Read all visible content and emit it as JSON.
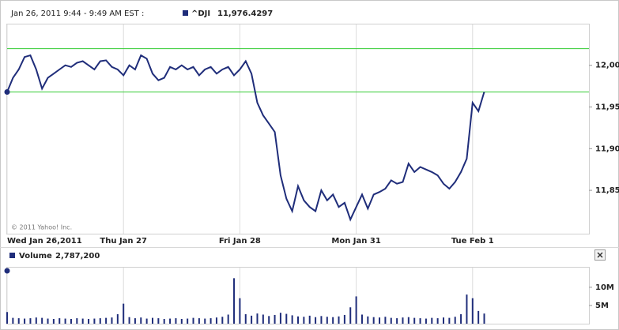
{
  "header": {
    "text": "Jan 26, 2011 9:44 - 9:49 AM EST :"
  },
  "chart_data": [
    {
      "type": "line",
      "series": [
        {
          "name": "^DJI",
          "color": "#1f2d7a",
          "quote": "11,976.4297",
          "values": [
            11968,
            11985,
            11995,
            12010,
            12012,
            11995,
            11972,
            11985,
            11990,
            11995,
            12000,
            11998,
            12003,
            12005,
            12000,
            11995,
            12005,
            12006,
            11998,
            11995,
            11988,
            12000,
            11995,
            12012,
            12008,
            11990,
            11982,
            11985,
            11998,
            11995,
            12000,
            11995,
            11998,
            11988,
            11995,
            11998,
            11990,
            11995,
            11998,
            11988,
            11995,
            12005,
            11990,
            11955,
            11940,
            11930,
            11920,
            11868,
            11840,
            11825,
            11855,
            11838,
            11830,
            11825,
            11850,
            11838,
            11845,
            11830,
            11835,
            11815,
            11830,
            11845,
            11828,
            11845,
            11848,
            11852,
            11862,
            11858,
            11860,
            11882,
            11872,
            11878,
            11875,
            11872,
            11868,
            11858,
            11852,
            11860,
            11872,
            11888,
            11955,
            11945,
            11968
          ]
        }
      ],
      "xlim": [
        0,
        100
      ],
      "xticks": [
        {
          "value": 0,
          "label": "Wed Jan 26,2011"
        },
        {
          "value": 20,
          "label": "Thu Jan 27"
        },
        {
          "value": 40,
          "label": "Fri Jan 28"
        },
        {
          "value": 60,
          "label": "Mon Jan 31"
        },
        {
          "value": 80,
          "label": "Tue Feb 1"
        }
      ],
      "ylim": [
        11798,
        12049
      ],
      "yticks": [
        {
          "value": 11850,
          "label": "11,850"
        },
        {
          "value": 11900,
          "label": "11,900"
        },
        {
          "value": 11950,
          "label": "11,950"
        },
        {
          "value": 12000,
          "label": "12,000"
        }
      ],
      "reference_lines": {
        "color": "#33cc33",
        "values": [
          12020,
          11968
        ]
      },
      "annotation": "© 2011 Yahoo! Inc."
    },
    {
      "type": "bar",
      "series": [
        {
          "name": "Volume",
          "color": "#1f2d7a",
          "quote": "2,787,200",
          "values": [
            3200000,
            1600000,
            1500000,
            1400000,
            1500000,
            1700000,
            1600000,
            1400000,
            1300000,
            1500000,
            1400000,
            1300000,
            1500000,
            1400000,
            1300000,
            1400000,
            1500000,
            1600000,
            1700000,
            2600000,
            5500000,
            1800000,
            1500000,
            1700000,
            1400000,
            1600000,
            1500000,
            1300000,
            1400000,
            1500000,
            1300000,
            1400000,
            1600000,
            1500000,
            1400000,
            1500000,
            1700000,
            1900000,
            2500000,
            12500000,
            7000000,
            2600000,
            2200000,
            2800000,
            2500000,
            2100000,
            2400000,
            3000000,
            2700000,
            2300000,
            2000000,
            1900000,
            2200000,
            1800000,
            2100000,
            1900000,
            1800000,
            2000000,
            2400000,
            4500000,
            7500000,
            2500000,
            2000000,
            1800000,
            1700000,
            1900000,
            1600000,
            1500000,
            1700000,
            1800000,
            1600000,
            1500000,
            1400000,
            1600000,
            1500000,
            1700000,
            1600000,
            1900000,
            2600000,
            8000000,
            7000000,
            3500000,
            2787200
          ]
        }
      ],
      "xlim": [
        0,
        100
      ],
      "ylim": [
        0,
        15400000
      ],
      "yticks": [
        {
          "value": 5000000,
          "label": "5M"
        },
        {
          "value": 10000000,
          "label": "10M"
        }
      ]
    }
  ]
}
